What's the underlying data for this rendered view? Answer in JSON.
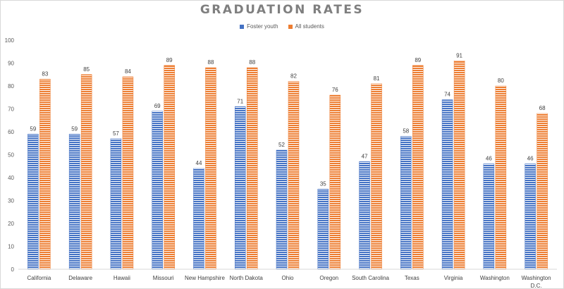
{
  "chart_data": {
    "type": "bar",
    "title": "GRADUATION RATES",
    "xlabel": "",
    "ylabel": "",
    "ylim": [
      0,
      100
    ],
    "yticks": [
      0,
      10,
      20,
      30,
      40,
      50,
      60,
      70,
      80,
      90,
      100
    ],
    "grid": false,
    "legend_position": "top",
    "categories": [
      "California",
      "Delaware",
      "Hawaii",
      "Missouri",
      "New Hampshire",
      "North Dakota",
      "Ohio",
      "Oregon",
      "South Carolina",
      "Texas",
      "Virginia",
      "Washington",
      "Washington D.C."
    ],
    "series": [
      {
        "name": "Foster youth",
        "color": "#4472c4",
        "values": [
          59,
          59,
          57,
          69,
          44,
          71,
          52,
          35,
          47,
          58,
          74,
          46,
          46
        ]
      },
      {
        "name": "All students",
        "color": "#ed7d31",
        "values": [
          83,
          85,
          84,
          89,
          88,
          88,
          82,
          76,
          81,
          89,
          91,
          80,
          68
        ]
      }
    ]
  }
}
